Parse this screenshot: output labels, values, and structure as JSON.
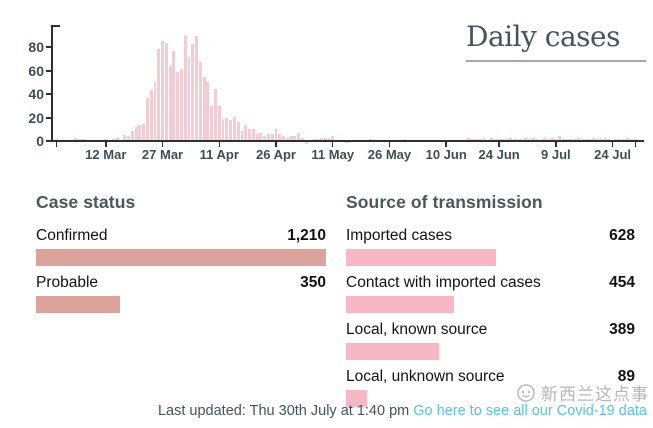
{
  "title": "Daily cases",
  "chart_data": {
    "type": "bar",
    "title": "Daily cases",
    "xlabel": "",
    "ylabel": "",
    "ylim": [
      0,
      100
    ],
    "grid": false,
    "bar_color": "#f2cbd4",
    "axis_color": "#2f2f2f",
    "start_date": "28 Feb 2020",
    "end_date": "30 Jul 2020",
    "frequency": "daily",
    "yticks": [
      0,
      20,
      40,
      60,
      80
    ],
    "xticks": [
      {
        "label": "",
        "day": 0
      },
      {
        "label": "12 Mar",
        "day": 13
      },
      {
        "label": "27 Mar",
        "day": 28
      },
      {
        "label": "11 Apr",
        "day": 43
      },
      {
        "label": "26 Apr",
        "day": 58
      },
      {
        "label": "11 May",
        "day": 73
      },
      {
        "label": "26 May",
        "day": 88
      },
      {
        "label": "10 Jun",
        "day": 103
      },
      {
        "label": "24 Jun",
        "day": 117
      },
      {
        "label": "9 Jul",
        "day": 132
      },
      {
        "label": "24 Jul",
        "day": 147
      },
      {
        "label": "",
        "day": 153
      }
    ],
    "values": [
      1,
      0,
      0,
      0,
      0,
      2,
      1,
      1,
      0,
      0,
      0,
      0,
      0,
      1,
      0,
      1,
      2,
      0,
      4,
      3,
      8,
      11,
      13,
      14,
      36,
      43,
      50,
      78,
      85,
      83,
      63,
      76,
      58,
      61,
      89,
      71,
      82,
      89,
      67,
      54,
      50,
      29,
      44,
      29,
      18,
      19,
      17,
      20,
      15,
      8,
      13,
      9,
      9,
      5,
      6,
      3,
      5,
      5,
      9,
      5,
      3,
      2,
      3,
      3,
      6,
      2,
      -2,
      0,
      1,
      1,
      2,
      2,
      2,
      3,
      0,
      0,
      0,
      -1,
      0,
      0,
      0,
      0,
      0,
      1,
      0,
      0,
      0,
      0,
      0,
      0,
      0,
      0,
      1,
      0,
      0,
      0,
      0,
      0,
      0,
      0,
      0,
      0,
      0,
      0,
      0,
      0,
      0,
      0,
      0,
      2,
      1,
      1,
      1,
      2,
      0,
      2,
      1,
      1,
      1,
      1,
      2,
      1,
      1,
      1,
      2,
      1,
      2,
      1,
      0,
      2,
      1,
      2,
      1,
      3,
      1,
      1,
      1,
      1,
      2,
      1,
      1,
      1,
      2,
      1,
      1,
      2,
      1,
      0,
      1,
      1,
      1,
      2,
      1,
      1
    ]
  },
  "panels": {
    "case_status": {
      "heading": "Case status",
      "max_value": 1210,
      "bar_color": "#dca39c",
      "rows": [
        {
          "label": "Confirmed",
          "value": "1,210",
          "numeric": 1210
        },
        {
          "label": "Probable",
          "value": "350",
          "numeric": 350
        }
      ]
    },
    "source_of_transmission": {
      "heading": "Source of transmission",
      "max_value": 1210,
      "bar_color": "#f9b6c3",
      "rows": [
        {
          "label": "Imported cases",
          "value": "628",
          "numeric": 628
        },
        {
          "label": "Contact with imported cases",
          "value": "454",
          "numeric": 454
        },
        {
          "label": "Local, known source",
          "value": "389",
          "numeric": 389
        },
        {
          "label": "Local, unknown source",
          "value": "89",
          "numeric": 89
        }
      ]
    }
  },
  "footer": {
    "last_updated": "Last updated: Thu 30th July at 1:40 pm",
    "link_text": "Go here to see all our Covid-19 data",
    "link_color": "#55c3e9"
  },
  "watermark": {
    "text": "新西兰这点事"
  }
}
